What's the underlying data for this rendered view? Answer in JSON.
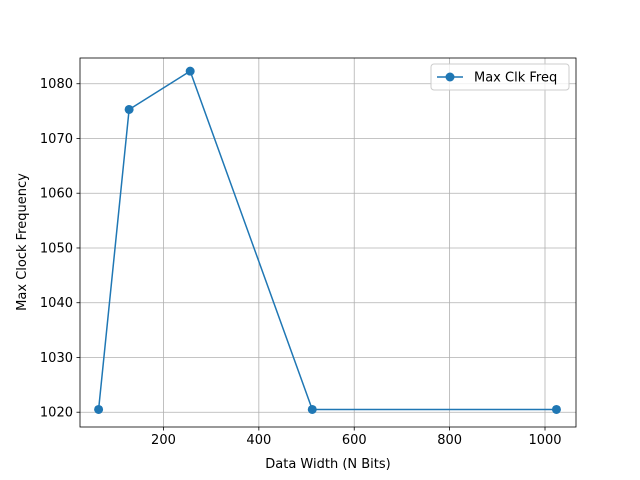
{
  "chart_data": {
    "type": "line",
    "title": "",
    "xlabel": "Data Width (N Bits)",
    "ylabel": "Max Clock Frequency",
    "xlim": [
      25,
      1065
    ],
    "ylim": [
      1017.3,
      1084.7
    ],
    "xticks": [
      200,
      400,
      600,
      800,
      1000
    ],
    "yticks": [
      1020,
      1030,
      1040,
      1050,
      1060,
      1070,
      1080
    ],
    "grid": true,
    "legend_position": "top-right",
    "series": [
      {
        "name": "Max Clk Freq",
        "color": "#1f77b4",
        "marker": "circle",
        "x": [
          64,
          128,
          256,
          512,
          1024
        ],
        "y": [
          1020.5,
          1075.3,
          1082.3,
          1020.5,
          1020.5
        ]
      }
    ]
  }
}
